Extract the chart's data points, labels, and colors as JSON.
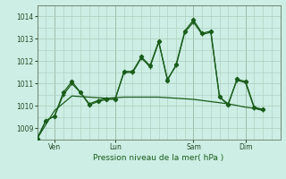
{
  "background_color": "#cceee4",
  "grid_color": "#aaccbb",
  "line_color": "#1a5c1a",
  "xlabel": "Pression niveau de la mer( hPa )",
  "yticks": [
    1009,
    1010,
    1011,
    1012,
    1013,
    1014
  ],
  "ylim": [
    1008.5,
    1014.5
  ],
  "xlim": [
    0,
    28
  ],
  "day_labels": [
    "Ven",
    "Lun",
    "Sam",
    "Dim"
  ],
  "day_positions": [
    2,
    9,
    18,
    24
  ],
  "series1_x": [
    0,
    1,
    2,
    3,
    4,
    5,
    6,
    7,
    8,
    9,
    10,
    11,
    12,
    13,
    14,
    15,
    16,
    17,
    18,
    19,
    20,
    21,
    22,
    23,
    24,
    25,
    26
  ],
  "series1_y": [
    1008.55,
    1009.35,
    1009.55,
    1010.6,
    1011.1,
    1010.6,
    1010.05,
    1010.2,
    1010.3,
    1010.3,
    1011.55,
    1011.55,
    1012.2,
    1011.8,
    1012.9,
    1011.15,
    1011.85,
    1013.35,
    1013.85,
    1013.25,
    1013.35,
    1010.4,
    1010.05,
    1011.2,
    1011.1,
    1009.95,
    1009.85
  ],
  "series2_x": [
    0,
    1,
    2,
    3,
    4,
    5,
    6,
    7,
    8,
    9,
    10,
    11,
    12,
    13,
    14,
    15,
    16,
    17,
    18,
    19,
    20,
    21,
    22,
    23,
    24,
    25,
    26
  ],
  "series2_y": [
    1008.55,
    1009.35,
    1009.55,
    1010.5,
    1011.0,
    1010.6,
    1010.1,
    1010.25,
    1010.35,
    1010.35,
    1011.5,
    1011.5,
    1012.15,
    1011.75,
    1012.85,
    1011.2,
    1011.8,
    1013.3,
    1013.75,
    1013.2,
    1013.3,
    1010.4,
    1010.1,
    1011.15,
    1011.05,
    1009.9,
    1009.8
  ],
  "series3_x": [
    0,
    2,
    4,
    6,
    8,
    10,
    12,
    14,
    16,
    18,
    20,
    22,
    24,
    26
  ],
  "series3_y": [
    1008.55,
    1009.8,
    1010.45,
    1010.4,
    1010.35,
    1010.4,
    1010.4,
    1010.4,
    1010.35,
    1010.3,
    1010.2,
    1010.1,
    1009.95,
    1009.85
  ]
}
